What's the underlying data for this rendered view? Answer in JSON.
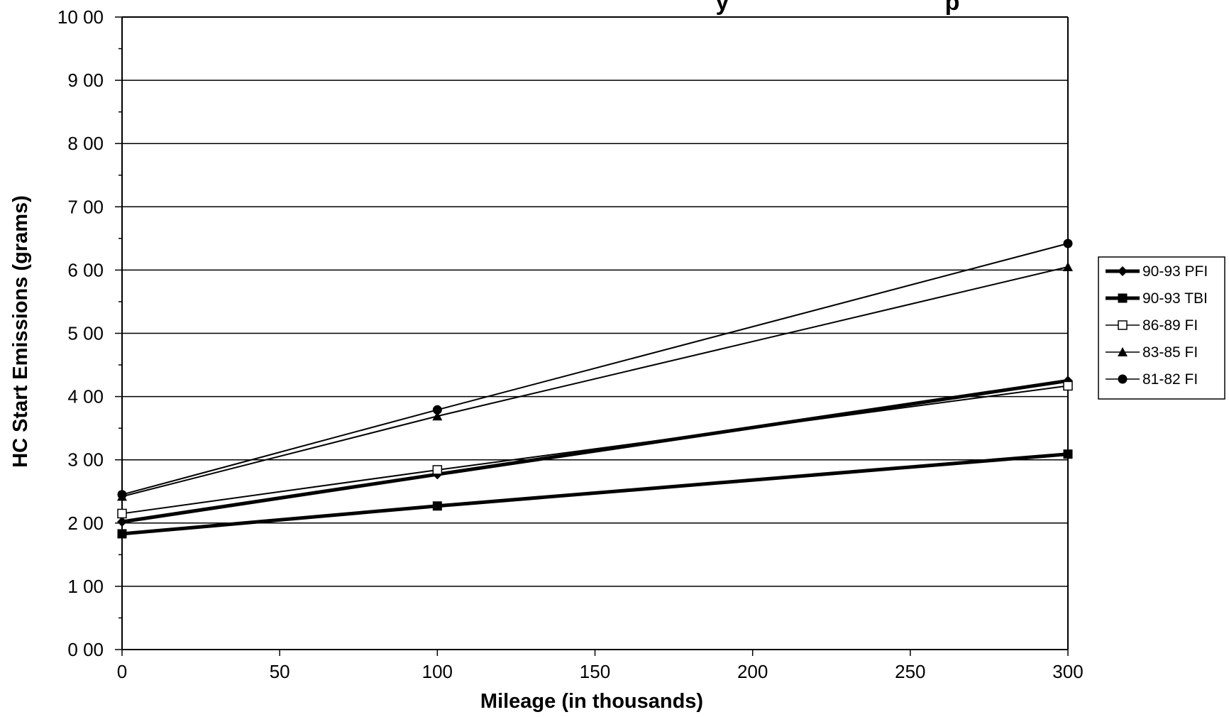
{
  "chart_data": {
    "type": "line",
    "title_visible_fragment": "y",
    "title_visible_fragment2": "p",
    "xlabel": "Mileage (in thousands)",
    "ylabel": "HC Start Emissions (grams)",
    "x_ticks": [
      "0",
      "50",
      "100",
      "150",
      "200",
      "250",
      "300"
    ],
    "y_ticks": [
      "0 00",
      "1 00",
      "2 00",
      "3 00",
      "4 00",
      "5 00",
      "6 00",
      "7 00",
      "8 00",
      "9 00",
      "10 00"
    ],
    "xlim": [
      0,
      300
    ],
    "ylim": [
      0,
      10
    ],
    "grid": "horizontal",
    "legend_position": "right",
    "x": [
      0,
      100,
      300
    ],
    "series": [
      {
        "name": "90-93 PFI",
        "values": [
          2.02,
          2.77,
          4.25
        ],
        "marker": "diamond",
        "line": "thick",
        "color": "#000000"
      },
      {
        "name": "90-93 TBI",
        "values": [
          1.83,
          2.27,
          3.09
        ],
        "marker": "square-filled",
        "line": "thick",
        "color": "#000000"
      },
      {
        "name": "86-89 FI",
        "values": [
          2.15,
          2.84,
          4.17
        ],
        "marker": "square-open",
        "line": "thin",
        "color": "#000000"
      },
      {
        "name": "83-85 FI",
        "values": [
          2.42,
          3.69,
          6.05
        ],
        "marker": "triangle",
        "line": "thin",
        "color": "#000000"
      },
      {
        "name": "81-82 FI",
        "values": [
          2.45,
          3.79,
          6.42
        ],
        "marker": "circle",
        "line": "thin",
        "color": "#000000"
      }
    ]
  }
}
